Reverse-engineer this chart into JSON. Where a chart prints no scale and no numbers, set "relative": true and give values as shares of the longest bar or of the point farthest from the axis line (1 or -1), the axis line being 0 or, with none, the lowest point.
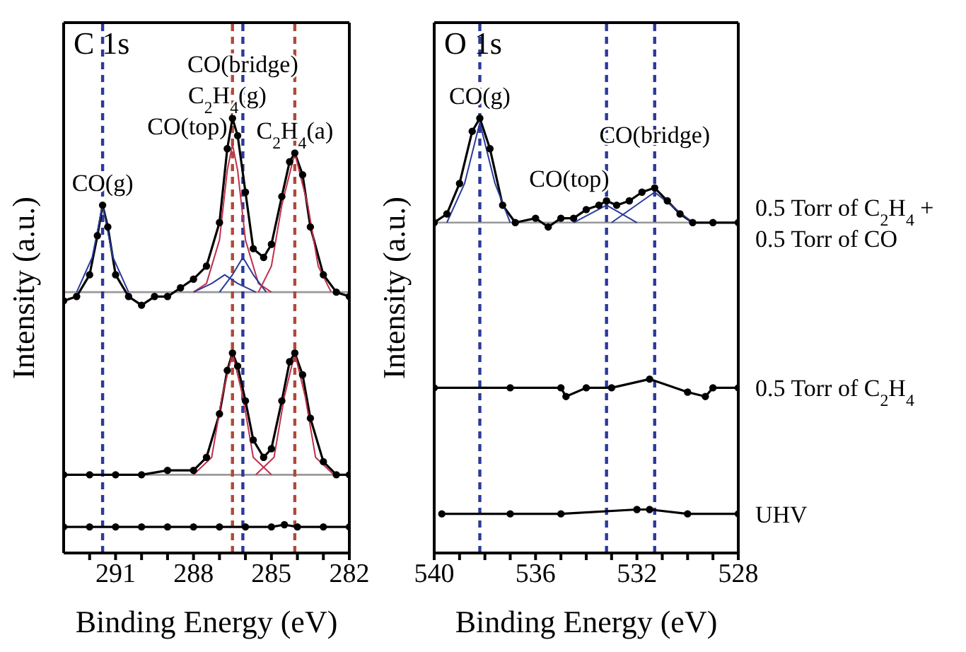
{
  "chart_data": [
    {
      "type": "line",
      "title": "C 1s",
      "xlabel": "Binding Energy (eV)",
      "ylabel": "Intensity (a.u.)",
      "relative": true,
      "xlim": [
        293,
        282
      ],
      "xticks": [
        {
          "value": 292,
          "label": null
        },
        291,
        {
          "value": 290,
          "label": null
        },
        {
          "value": 289,
          "label": null
        },
        288,
        {
          "value": 287,
          "label": null
        },
        {
          "value": 286,
          "label": null
        },
        285,
        {
          "value": 284,
          "label": null
        },
        {
          "value": 283,
          "label": null
        },
        282
      ],
      "series": [
        {
          "color": "#000000",
          "marker": "circle",
          "x": [
            293,
            292.5,
            292,
            291.7,
            291.5,
            291.3,
            291,
            290.5,
            290,
            289.5,
            289,
            288.5,
            288,
            287.5,
            287,
            286.7,
            286.5,
            286.3,
            286,
            285.7,
            285.3,
            285,
            284.6,
            284.3,
            284.1,
            283.8,
            283.5,
            283,
            282.5,
            282
          ],
          "values": [
            0.58,
            0.59,
            0.64,
            0.73,
            0.8,
            0.75,
            0.64,
            0.59,
            0.57,
            0.59,
            0.59,
            0.61,
            0.63,
            0.66,
            0.76,
            0.93,
            1.0,
            0.96,
            0.83,
            0.7,
            0.68,
            0.71,
            0.82,
            0.9,
            0.92,
            0.87,
            0.75,
            0.64,
            0.6,
            0.59
          ]
        },
        {
          "color": "#000000",
          "marker": "circle",
          "x": [
            293,
            292,
            291,
            290,
            289,
            288,
            287.5,
            287,
            286.7,
            286.5,
            286.3,
            286,
            285.7,
            285.3,
            285,
            284.6,
            284.3,
            284.1,
            283.8,
            283.5,
            283,
            282.5,
            282
          ],
          "values": [
            0.18,
            0.18,
            0.18,
            0.18,
            0.19,
            0.19,
            0.22,
            0.32,
            0.42,
            0.46,
            0.43,
            0.35,
            0.26,
            0.22,
            0.24,
            0.35,
            0.44,
            0.46,
            0.41,
            0.31,
            0.21,
            0.18,
            0.18
          ]
        },
        {
          "color": "#000000",
          "marker": "circle",
          "x": [
            293,
            292,
            291,
            290,
            289,
            288,
            287,
            286,
            285,
            284.5,
            284,
            283,
            282
          ],
          "values": [
            0.06,
            0.06,
            0.06,
            0.06,
            0.06,
            0.06,
            0.06,
            0.06,
            0.06,
            0.065,
            0.06,
            0.06,
            0.06
          ]
        },
        {
          "color": "#2a3a9a",
          "marker": "none",
          "x": [
            292.5,
            291.9,
            291.5,
            291.1,
            290.5
          ],
          "values": [
            0.6,
            0.68,
            0.8,
            0.68,
            0.6
          ]
        },
        {
          "color": "#c0304a",
          "marker": "none",
          "x": [
            288,
            287.5,
            287,
            286.7,
            286.5,
            286.3,
            286,
            285.5,
            285
          ],
          "values": [
            0.6,
            0.62,
            0.72,
            0.88,
            0.94,
            0.88,
            0.72,
            0.62,
            0.6
          ]
        },
        {
          "color": "#2a3a9a",
          "marker": "none",
          "x": [
            288,
            287.3,
            286.8,
            286.3,
            285.6
          ],
          "values": [
            0.6,
            0.62,
            0.64,
            0.62,
            0.6
          ]
        },
        {
          "color": "#2a3a9a",
          "marker": "none",
          "x": [
            287,
            286.5,
            286.1,
            285.7,
            285.2
          ],
          "values": [
            0.6,
            0.64,
            0.68,
            0.64,
            0.6
          ]
        },
        {
          "color": "#c0304a",
          "marker": "none",
          "x": [
            285.5,
            285,
            284.6,
            284.1,
            283.6,
            283.2,
            282.7
          ],
          "values": [
            0.6,
            0.66,
            0.8,
            0.92,
            0.8,
            0.66,
            0.6
          ]
        },
        {
          "color": "#c0304a",
          "marker": "none",
          "x": [
            288,
            287.3,
            286.9,
            286.5,
            286.1,
            285.7,
            285
          ],
          "values": [
            0.18,
            0.22,
            0.36,
            0.46,
            0.36,
            0.22,
            0.18
          ]
        },
        {
          "color": "#c0304a",
          "marker": "none",
          "x": [
            285.6,
            284.9,
            284.5,
            284.1,
            283.7,
            283.3,
            282.6
          ],
          "values": [
            0.18,
            0.22,
            0.36,
            0.46,
            0.36,
            0.22,
            0.18
          ]
        }
      ],
      "ref_lines": [
        {
          "axis": "y",
          "value": 0.6,
          "color": "#999999",
          "line_style": "solid"
        },
        {
          "axis": "y",
          "value": 0.18,
          "color": "#999999",
          "line_style": "solid"
        },
        {
          "axis": "x",
          "value": 291.5,
          "color": "#2a3a9a",
          "line_style": "dashed"
        },
        {
          "axis": "x",
          "value": 286.5,
          "color": "#b04a3a",
          "line_style": "dashed"
        },
        {
          "axis": "x",
          "value": 286.1,
          "color": "#2a3a9a",
          "line_style": "dashed"
        },
        {
          "axis": "x",
          "value": 284.1,
          "color": "#b04a3a",
          "line_style": "dashed"
        }
      ],
      "annotations": [
        {
          "text": "CO(g)",
          "x": 291.5,
          "y": 0.8
        },
        {
          "text": "CO(top)",
          "x": 286.8,
          "y": 0.93
        },
        {
          "text": "C$_{2}$H$_{4}$(g)",
          "x": 286.7,
          "y": 0.93
        },
        {
          "text": "CO(bridge)",
          "x": 286.1,
          "y": 0.93
        },
        {
          "text": "C$_{2}$H$_{4}$(a)",
          "x": 284.1,
          "y": 0.92
        }
      ]
    },
    {
      "type": "line",
      "title": "O 1s",
      "xlabel": "Binding Energy (eV)",
      "ylabel": "Intensity (a.u.)",
      "relative": true,
      "xlim": [
        540,
        528
      ],
      "xticks": [
        540,
        {
          "value": 539,
          "label": null
        },
        {
          "value": 538,
          "label": null
        },
        {
          "value": 537,
          "label": null
        },
        536,
        {
          "value": 535,
          "label": null
        },
        {
          "value": 534,
          "label": null
        },
        {
          "value": 533,
          "label": null
        },
        532,
        {
          "value": 531,
          "label": null
        },
        {
          "value": 530,
          "label": null
        },
        {
          "value": 529,
          "label": null
        },
        528
      ],
      "series": [
        {
          "name": "0.5 Torr of C$_{2}$H$_{4}$ + 0.5 Torr of CO",
          "color": "#000000",
          "marker": "circle",
          "x": [
            540,
            539.5,
            539,
            538.5,
            538.2,
            537.8,
            537.3,
            536.8,
            536,
            535.5,
            535,
            534.5,
            534,
            533.5,
            533.2,
            532.8,
            532.3,
            531.8,
            531.3,
            530.8,
            530.3,
            529.8,
            529,
            528
          ],
          "values": [
            0.76,
            0.78,
            0.85,
            0.97,
            1.0,
            0.93,
            0.8,
            0.76,
            0.77,
            0.75,
            0.77,
            0.77,
            0.79,
            0.8,
            0.81,
            0.8,
            0.81,
            0.83,
            0.84,
            0.81,
            0.78,
            0.76,
            0.76,
            0.76
          ]
        },
        {
          "name": "0.5 Torr of C$_{2}$H$_{4}$",
          "color": "#000000",
          "marker": "circle",
          "x": [
            540,
            537,
            535,
            534.8,
            534,
            533,
            531.5,
            530,
            529.3,
            529,
            528
          ],
          "values": [
            0.38,
            0.38,
            0.38,
            0.36,
            0.38,
            0.38,
            0.4,
            0.37,
            0.36,
            0.38,
            0.38
          ]
        },
        {
          "name": "UHV",
          "color": "#000000",
          "marker": "circle",
          "x": [
            539.7,
            537,
            535,
            532,
            531.5,
            530,
            528
          ],
          "values": [
            0.09,
            0.09,
            0.09,
            0.1,
            0.1,
            0.09,
            0.09
          ]
        },
        {
          "color": "#2a3a9a",
          "marker": "none",
          "x": [
            539.5,
            538.8,
            538.2,
            537.6,
            537
          ],
          "values": [
            0.76,
            0.85,
            0.99,
            0.85,
            0.76
          ]
        },
        {
          "color": "#2a3a9a",
          "marker": "none",
          "x": [
            534.5,
            533.2,
            532
          ],
          "values": [
            0.76,
            0.8,
            0.76
          ]
        },
        {
          "color": "#2a3a9a",
          "marker": "none",
          "x": [
            533,
            531.3,
            529.8
          ],
          "values": [
            0.76,
            0.83,
            0.76
          ]
        }
      ],
      "ref_lines": [
        {
          "axis": "y",
          "value": 0.76,
          "color": "#999999",
          "line_style": "solid"
        },
        {
          "axis": "x",
          "value": 538.2,
          "color": "#2a3a9a",
          "line_style": "dashed"
        },
        {
          "axis": "x",
          "value": 533.2,
          "color": "#2a3a9a",
          "line_style": "dashed"
        },
        {
          "axis": "x",
          "value": 531.3,
          "color": "#2a3a9a",
          "line_style": "dashed"
        }
      ],
      "annotations": [
        {
          "text": "CO(g)",
          "x": 538.2,
          "y": 1.0
        },
        {
          "text": "CO(top)",
          "x": 533.2,
          "y": 0.81
        },
        {
          "text": "CO(bridge)",
          "x": 531.3,
          "y": 0.84
        }
      ]
    }
  ]
}
